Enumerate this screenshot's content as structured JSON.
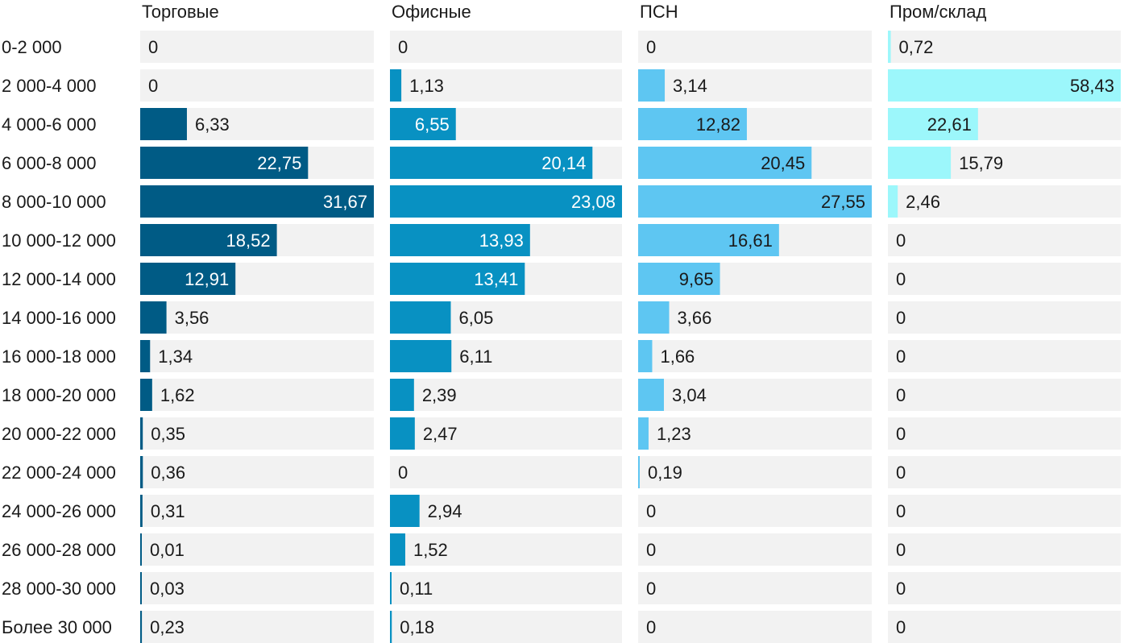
{
  "chart_data": {
    "type": "bar",
    "orientation": "horizontal",
    "layout": "small-multiples",
    "categories": [
      "0-2 000",
      "2 000-4 000",
      "4 000-6 000",
      "6 000-8 000",
      "8 000-10 000",
      "10 000-12 000",
      "12 000-14 000",
      "14 000-16 000",
      "16 000-18 000",
      "18 000-20 000",
      "20 000-22 000",
      "22 000-24 000",
      "24 000-26 000",
      "26 000-28 000",
      "28 000-30 000",
      "Более 30 000"
    ],
    "series": [
      {
        "name": "Торговые",
        "color": "#005b85",
        "max": 31.67,
        "values": [
          0,
          0,
          6.33,
          22.75,
          31.67,
          18.52,
          12.91,
          3.56,
          1.34,
          1.62,
          0.35,
          0.36,
          0.31,
          0.01,
          0.03,
          0.23
        ],
        "labels": [
          "0",
          "0",
          "6,33",
          "22,75",
          "31,67",
          "18,52",
          "12,91",
          "3,56",
          "1,34",
          "1,62",
          "0,35",
          "0,36",
          "0,31",
          "0,01",
          "0,03",
          "0,23"
        ]
      },
      {
        "name": "Офисные",
        "color": "#0891c2",
        "max": 23.08,
        "values": [
          0,
          1.13,
          6.55,
          20.14,
          23.08,
          13.93,
          13.41,
          6.05,
          6.11,
          2.39,
          2.47,
          0,
          2.94,
          1.52,
          0.11,
          0.18
        ],
        "labels": [
          "0",
          "1,13",
          "6,55",
          "20,14",
          "23,08",
          "13,93",
          "13,41",
          "6,05",
          "6,11",
          "2,39",
          "2,47",
          "0",
          "2,94",
          "1,52",
          "0,11",
          "0,18"
        ]
      },
      {
        "name": "ПСН",
        "color": "#5ec6f2",
        "max": 27.55,
        "values": [
          0,
          3.14,
          12.82,
          20.45,
          27.55,
          16.61,
          9.65,
          3.66,
          1.66,
          3.04,
          1.23,
          0.19,
          0,
          0,
          0,
          0
        ],
        "labels": [
          "0",
          "3,14",
          "12,82",
          "20,45",
          "27,55",
          "16,61",
          "9,65",
          "3,66",
          "1,66",
          "3,04",
          "1,23",
          "0,19",
          "0",
          "0",
          "0",
          "0"
        ]
      },
      {
        "name": "Пром/склад",
        "color": "#9cf7fb",
        "max": 58.43,
        "values": [
          0.72,
          58.43,
          22.61,
          15.79,
          2.46,
          0,
          0,
          0,
          0,
          0,
          0,
          0,
          0,
          0,
          0,
          0
        ],
        "labels": [
          "0,72",
          "58,43",
          "22,61",
          "15,79",
          "2,46",
          "0",
          "0",
          "0",
          "0",
          "0",
          "0",
          "0",
          "0",
          "0",
          "0",
          "0"
        ]
      }
    ],
    "track_color": "#f2f2f2",
    "grid": false,
    "legend": "none",
    "title": "",
    "xlabel": "",
    "ylabel": ""
  }
}
